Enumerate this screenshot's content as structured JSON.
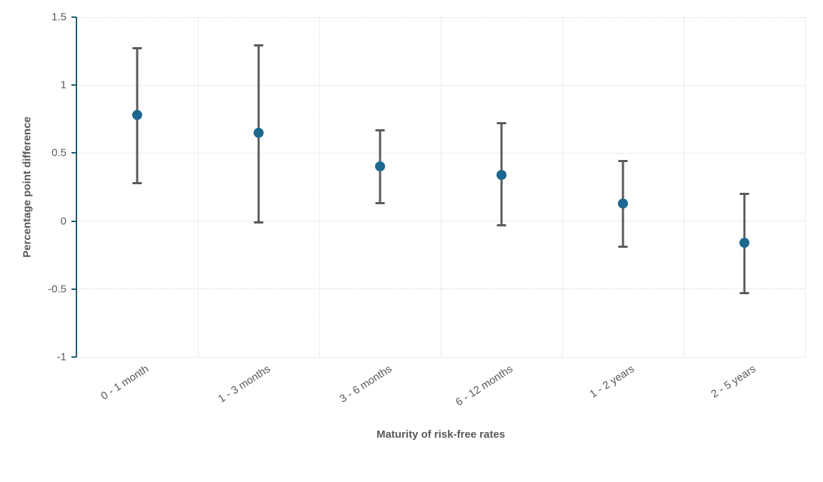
{
  "chart_data": {
    "type": "scatter",
    "subtype": "point-with-error-bars",
    "categories": [
      "0 - 1 month",
      "1 - 3 months",
      "3 - 6 months",
      "6 - 12 months",
      "1 - 2 years",
      "2 - 5 years"
    ],
    "values": [
      0.78,
      0.65,
      0.4,
      0.34,
      0.13,
      -0.16
    ],
    "upper": [
      1.27,
      1.29,
      0.67,
      0.72,
      0.44,
      0.2
    ],
    "lower": [
      0.28,
      -0.01,
      0.13,
      -0.03,
      -0.19,
      -0.53
    ],
    "title": "",
    "xlabel": "Maturity of risk-free rates",
    "ylabel": "Percentage point difference",
    "ylim": [
      -1,
      1.5
    ],
    "yticks": [
      1.5,
      1,
      0.5,
      0,
      -0.5,
      -1
    ],
    "ytick_labels": [
      "1.5",
      "1",
      "0.5",
      "0",
      "-0.5",
      "-1"
    ],
    "grid": true,
    "legend": "none",
    "colors": {
      "marker": "#1d688f",
      "error_bar": "#595959",
      "gridline": "#d9d9d9",
      "axis_line": "#1d5a70",
      "text": "#595959",
      "background": "#ffffff"
    }
  }
}
